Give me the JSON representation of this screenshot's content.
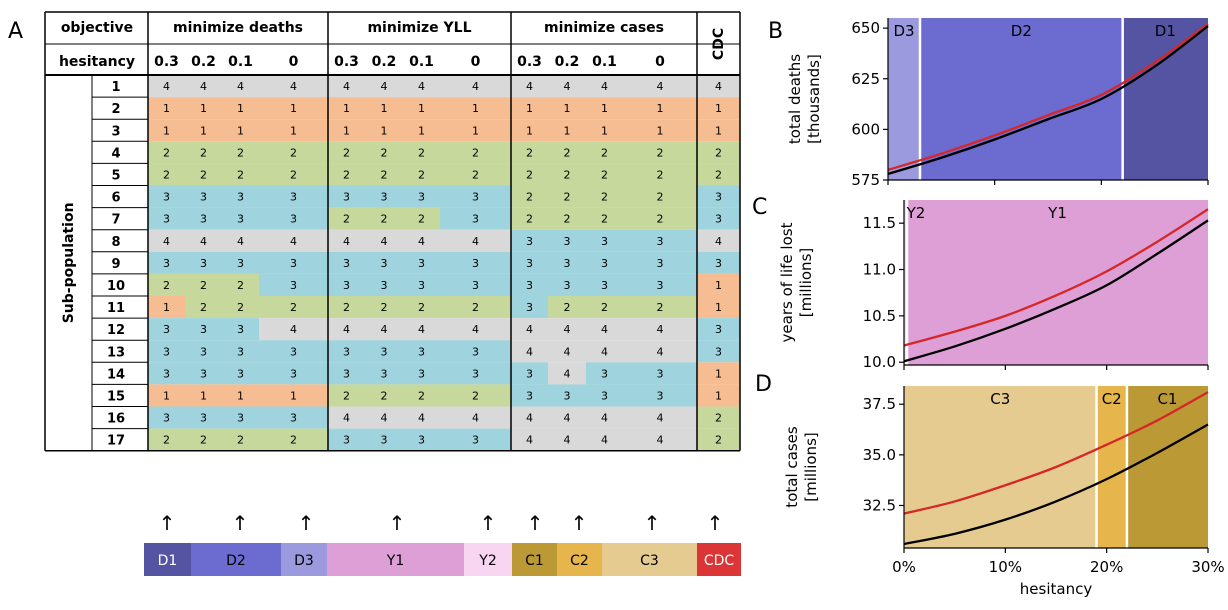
{
  "panel_letters": {
    "a": "A",
    "b": "B",
    "c": "C",
    "d": "D"
  },
  "table": {
    "header_objective_label": "objective",
    "header_hesitancy_label": "hesitancy",
    "row_axis_label": "Sub-population",
    "groups": [
      {
        "label": "minimize deaths",
        "hesitancy": [
          "0.3",
          "0.2",
          "0.1",
          "0"
        ]
      },
      {
        "label": "minimize YLL",
        "hesitancy": [
          "0.3",
          "0.2",
          "0.1",
          "0"
        ]
      },
      {
        "label": "minimize cases",
        "hesitancy": [
          "0.3",
          "0.2",
          "0.1",
          "0"
        ]
      }
    ],
    "cdc_label": "CDC",
    "rows": [
      "1",
      "2",
      "3",
      "4",
      "5",
      "6",
      "7",
      "8",
      "9",
      "10",
      "11",
      "12",
      "13",
      "14",
      "15",
      "16",
      "17"
    ],
    "cells": [
      [
        4,
        4,
        4,
        4,
        4,
        4,
        4,
        4,
        4,
        4,
        4,
        4,
        4
      ],
      [
        1,
        1,
        1,
        1,
        1,
        1,
        1,
        1,
        1,
        1,
        1,
        1,
        1
      ],
      [
        1,
        1,
        1,
        1,
        1,
        1,
        1,
        1,
        1,
        1,
        1,
        1,
        1
      ],
      [
        2,
        2,
        2,
        2,
        2,
        2,
        2,
        2,
        2,
        2,
        2,
        2,
        2
      ],
      [
        2,
        2,
        2,
        2,
        2,
        2,
        2,
        2,
        2,
        2,
        2,
        2,
        2
      ],
      [
        3,
        3,
        3,
        3,
        3,
        3,
        3,
        3,
        2,
        2,
        2,
        2,
        3
      ],
      [
        3,
        3,
        3,
        3,
        2,
        2,
        2,
        3,
        2,
        2,
        2,
        2,
        3
      ],
      [
        4,
        4,
        4,
        4,
        4,
        4,
        4,
        4,
        3,
        3,
        3,
        3,
        4
      ],
      [
        3,
        3,
        3,
        3,
        3,
        3,
        3,
        3,
        3,
        3,
        3,
        3,
        3
      ],
      [
        2,
        2,
        2,
        3,
        3,
        3,
        3,
        3,
        3,
        3,
        3,
        3,
        1
      ],
      [
        1,
        2,
        2,
        2,
        2,
        2,
        2,
        2,
        3,
        2,
        2,
        2,
        1
      ],
      [
        3,
        3,
        3,
        4,
        4,
        4,
        4,
        4,
        4,
        4,
        4,
        4,
        3
      ],
      [
        3,
        3,
        3,
        3,
        3,
        3,
        3,
        3,
        4,
        4,
        4,
        4,
        3
      ],
      [
        3,
        3,
        3,
        3,
        3,
        3,
        3,
        3,
        3,
        4,
        3,
        3,
        1
      ],
      [
        1,
        1,
        1,
        1,
        2,
        2,
        2,
        2,
        3,
        3,
        3,
        3,
        1
      ],
      [
        3,
        3,
        3,
        3,
        4,
        4,
        4,
        4,
        4,
        4,
        4,
        4,
        2
      ],
      [
        2,
        2,
        2,
        2,
        3,
        3,
        3,
        3,
        4,
        4,
        4,
        4,
        2
      ]
    ],
    "phase_colors": {
      "1": "#f7bd92",
      "2": "#c6d89c",
      "3": "#9fd3dd",
      "4": "#d9d9d9"
    },
    "arrow_glyph": "↑",
    "strategy_bar": [
      {
        "label": "D1",
        "color": "#5554a3",
        "text_color": "#ffffff"
      },
      {
        "label": "D2",
        "color": "#6b6bd0",
        "text_color": "#000000"
      },
      {
        "label": "D3",
        "color": "#9c9ade",
        "text_color": "#000000"
      },
      {
        "label": "Y1",
        "color": "#de9fd6",
        "text_color": "#000000"
      },
      {
        "label": "Y2",
        "color": "#f8d5f1",
        "text_color": "#000000"
      },
      {
        "label": "C1",
        "color": "#bb9a36",
        "text_color": "#000000"
      },
      {
        "label": "C2",
        "color": "#e6b54b",
        "text_color": "#000000"
      },
      {
        "label": "C3",
        "color": "#e6cb91",
        "text_color": "#000000"
      },
      {
        "label": "CDC",
        "color": "#dc3535",
        "text_color": "#ffffff"
      }
    ]
  },
  "chart_data": [
    {
      "type": "line",
      "panel": "B",
      "ylabel": "total deaths\n[thousands]",
      "yticks": [
        575,
        600,
        625,
        650
      ],
      "ylim": [
        575,
        655
      ],
      "xlim": [
        0,
        30
      ],
      "regions": [
        {
          "label": "D3",
          "from": 0,
          "to": 3,
          "color": "#9c9ade"
        },
        {
          "label": "D2",
          "from": 3,
          "to": 22,
          "color": "#6b6bd0"
        },
        {
          "label": "D1",
          "from": 22,
          "to": 30,
          "color": "#5554a3"
        }
      ],
      "series": [
        {
          "color": "#d62728",
          "x": [
            0,
            5,
            10,
            15,
            20,
            25,
            30
          ],
          "values": [
            580,
            588,
            597,
            607,
            617,
            633,
            652
          ]
        },
        {
          "color": "#000000",
          "x": [
            0,
            5,
            10,
            15,
            20,
            25,
            30
          ],
          "values": [
            578,
            586,
            595,
            605,
            615,
            631,
            651
          ]
        }
      ]
    },
    {
      "type": "line",
      "panel": "C",
      "ylabel": "years of life lost\n[millions]",
      "yticks": [
        10.0,
        10.5,
        11.0,
        11.5
      ],
      "ytick_labels": [
        "10.0",
        "10.5",
        "11.0",
        "11.5"
      ],
      "ylim": [
        9.97,
        11.75
      ],
      "xlim": [
        0,
        30
      ],
      "regions": [
        {
          "label": "Y2",
          "from": 0,
          "to": 0.3,
          "color": "#f8d5f1"
        },
        {
          "label": "Y1",
          "from": 0.3,
          "to": 30,
          "color": "#de9fd6"
        }
      ],
      "series": [
        {
          "color": "#d62728",
          "x": [
            0,
            5,
            10,
            15,
            20,
            25,
            30
          ],
          "values": [
            10.18,
            10.33,
            10.5,
            10.72,
            10.98,
            11.3,
            11.65
          ]
        },
        {
          "color": "#000000",
          "x": [
            0,
            5,
            10,
            15,
            20,
            25,
            30
          ],
          "values": [
            10.01,
            10.17,
            10.36,
            10.58,
            10.83,
            11.17,
            11.53
          ]
        }
      ]
    },
    {
      "type": "line",
      "panel": "D",
      "ylabel": "total cases\n[millions]",
      "xlabel": "hesitancy",
      "yticks": [
        32.5,
        35.0,
        37.5
      ],
      "ytick_labels": [
        "32.5",
        "35.0",
        "37.5"
      ],
      "xticks": [
        0,
        10,
        20,
        30
      ],
      "xtick_labels": [
        "0%",
        "10%",
        "20%",
        "30%"
      ],
      "ylim": [
        30.4,
        38.4
      ],
      "xlim": [
        0,
        30
      ],
      "regions": [
        {
          "label": "C3",
          "from": 0,
          "to": 19,
          "color": "#e6cb91"
        },
        {
          "label": "C2",
          "from": 19,
          "to": 22,
          "color": "#e6b54b"
        },
        {
          "label": "C1",
          "from": 22,
          "to": 30,
          "color": "#bb9a36"
        }
      ],
      "series": [
        {
          "color": "#d62728",
          "x": [
            0,
            5,
            10,
            15,
            20,
            25,
            30
          ],
          "values": [
            32.1,
            32.7,
            33.5,
            34.4,
            35.5,
            36.7,
            38.1
          ]
        },
        {
          "color": "#000000",
          "x": [
            0,
            5,
            10,
            15,
            20,
            25,
            30
          ],
          "values": [
            30.6,
            31.1,
            31.8,
            32.7,
            33.8,
            35.1,
            36.5
          ]
        }
      ]
    }
  ]
}
